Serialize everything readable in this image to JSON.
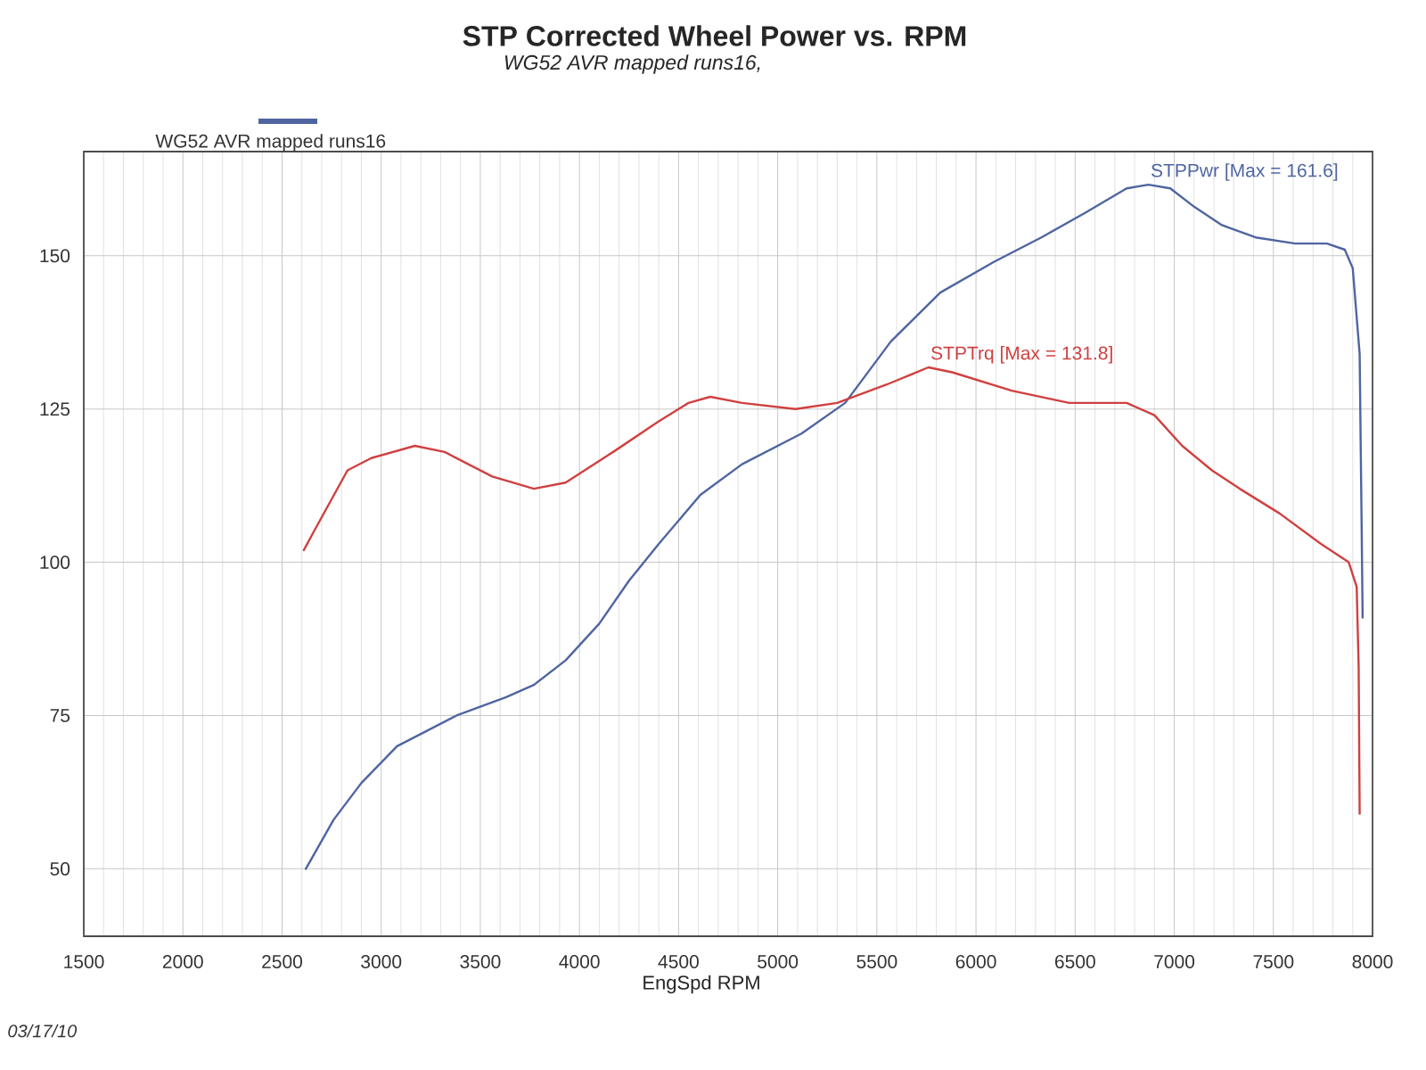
{
  "chart_data": {
    "type": "line",
    "title": "STP Corrected Wheel Power vs. RPM",
    "subtitle": "WG52 AVR mapped runs16,",
    "xlabel": "EngSpd RPM",
    "legend": "top left",
    "xlim": [
      1500,
      8000
    ],
    "xticks": [
      1500,
      2000,
      2500,
      3000,
      3500,
      4000,
      4500,
      5000,
      5500,
      6000,
      6500,
      7000,
      7500,
      8000
    ],
    "ylim": [
      39,
      167
    ],
    "yticks": [
      50,
      75,
      100,
      125,
      150
    ],
    "grid": true,
    "series": [
      {
        "name": "WG52 AVR mapped runs16",
        "color": "#4f65a0",
        "x": [
          2620,
          2760,
          2900,
          3080,
          3200,
          3380,
          3630,
          3770,
          3930,
          4100,
          4250,
          4400,
          4610,
          4820,
          5120,
          5340,
          5570,
          5820,
          6090,
          6330,
          6550,
          6760,
          6870,
          6980,
          7100,
          7240,
          7410,
          7610,
          7770,
          7860,
          7900,
          7935,
          7945,
          7950
        ],
        "values": [
          50,
          58,
          64,
          70,
          72,
          75,
          78,
          80,
          84,
          90,
          97,
          103,
          111,
          116,
          121,
          126,
          136,
          144,
          149,
          153,
          157,
          161,
          161.6,
          161,
          158,
          155,
          153,
          152,
          152,
          151,
          148,
          134,
          106,
          91
        ]
      },
      {
        "color": "#d04040",
        "x": [
          2610,
          2660,
          2830,
          2950,
          3170,
          3320,
          3560,
          3770,
          3930,
          4170,
          4400,
          4550,
          4660,
          4820,
          5090,
          5300,
          5550,
          5760,
          5880,
          6180,
          6470,
          6760,
          6900,
          7040,
          7190,
          7330,
          7530,
          7740,
          7880,
          7920,
          7930,
          7935
        ],
        "values": [
          102,
          105,
          115,
          117,
          119,
          118,
          114,
          112,
          113,
          118,
          123,
          126,
          127,
          126,
          125,
          126,
          129,
          131.8,
          131,
          128,
          126,
          126,
          124,
          119,
          115,
          112,
          108,
          103,
          100,
          96,
          83,
          59
        ]
      }
    ],
    "annotations": [
      "03/17/10",
      {
        "text": "STPPwr [Max = 161.6]",
        "x": 6870,
        "y": 161.6
      },
      {
        "text": "STPTrq [Max = 131.8]",
        "x": 5760,
        "y": 131.8
      }
    ]
  }
}
